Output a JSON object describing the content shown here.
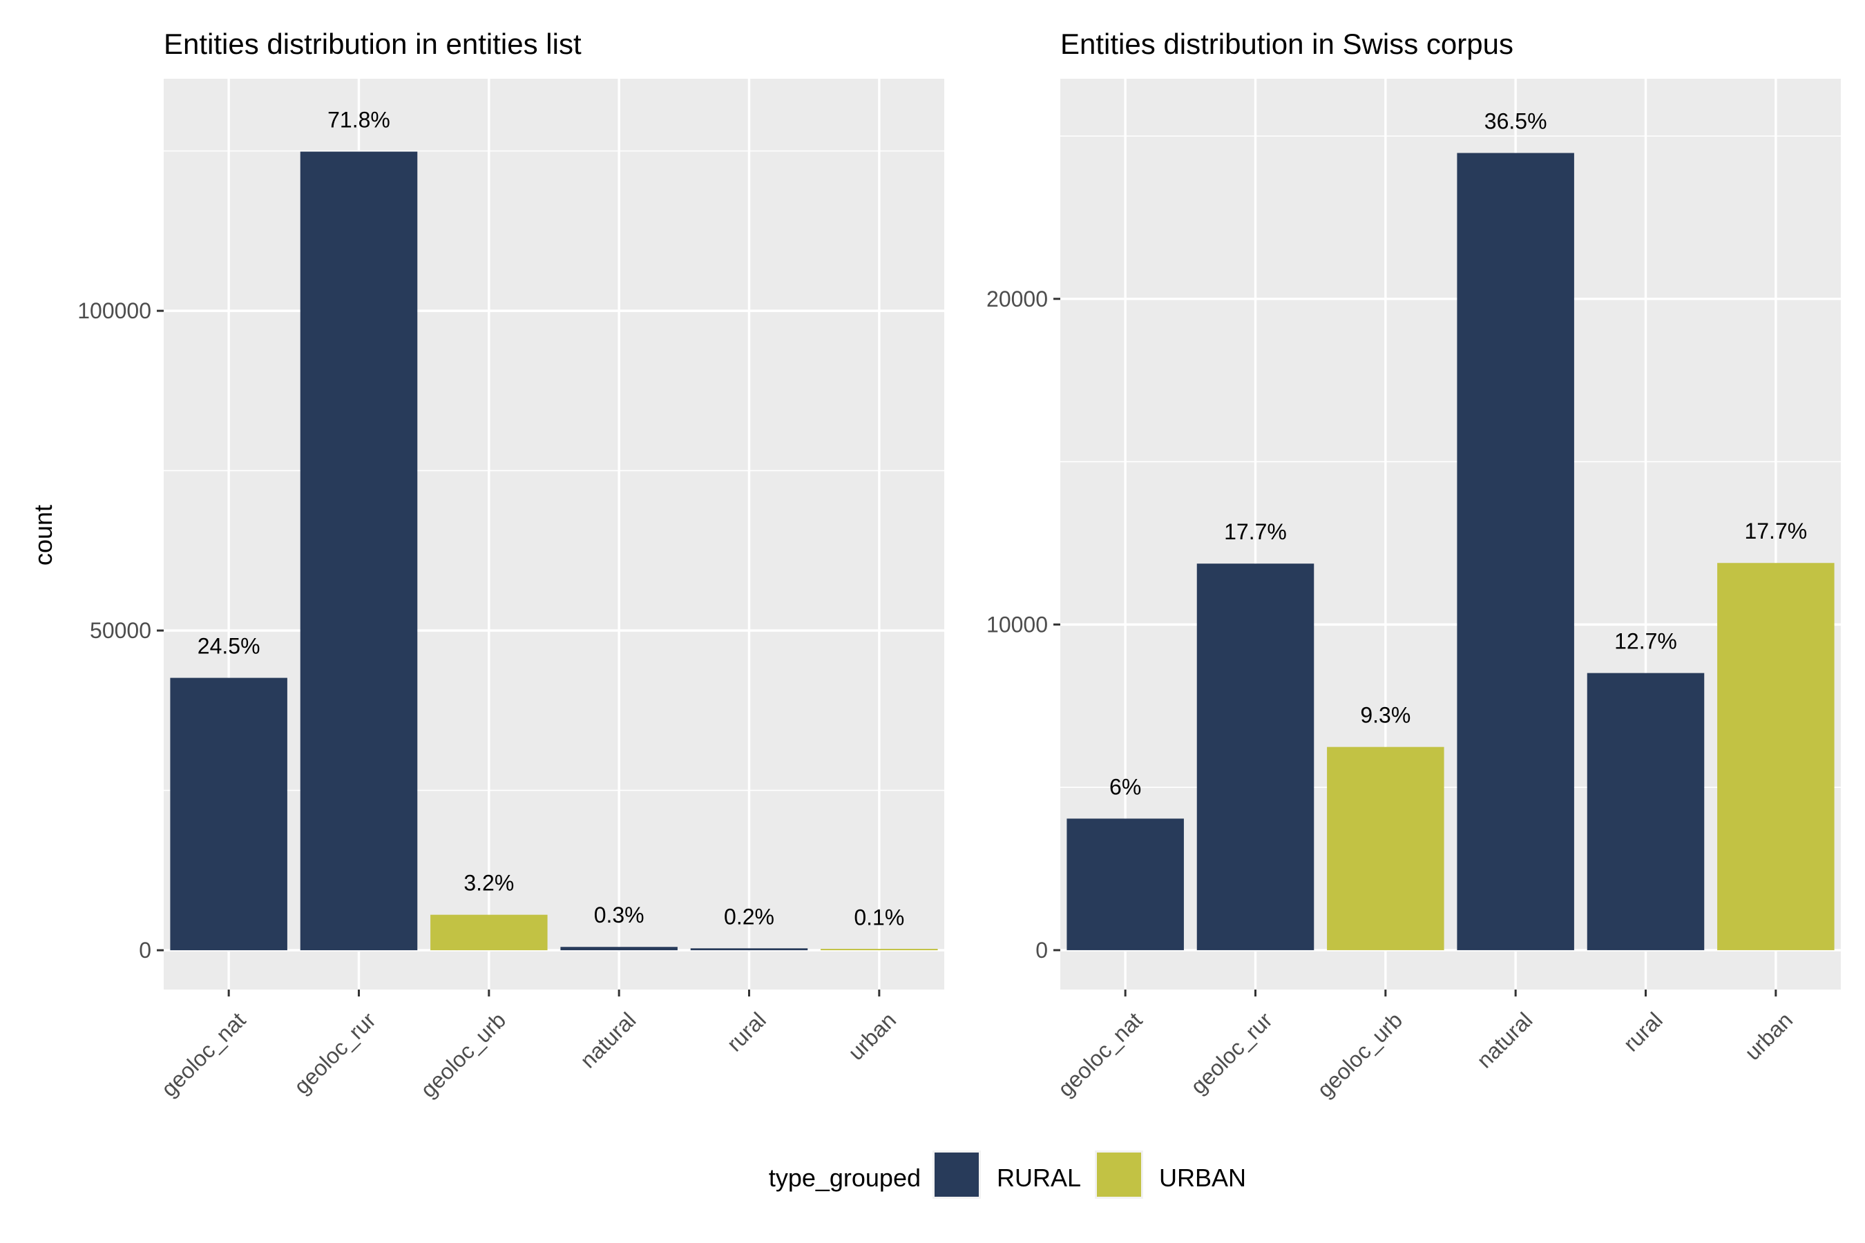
{
  "chart_data": [
    {
      "type": "bar",
      "title": "Entities distribution in entities list",
      "xlabel": "",
      "ylabel": "count",
      "categories": [
        "geoloc_nat",
        "geoloc_rur",
        "geoloc_urb",
        "natural",
        "rural",
        "urban"
      ],
      "values": [
        42600,
        124900,
        5550,
        520,
        300,
        150
      ],
      "groups": [
        "RURAL",
        "RURAL",
        "URBAN",
        "RURAL",
        "RURAL",
        "URBAN"
      ],
      "labels": [
        "24.5%",
        "71.8%",
        "3.2%",
        "0.3%",
        "0.2%",
        "0.1%"
      ],
      "yticks": [
        0,
        50000,
        100000
      ],
      "ytick_labels": [
        "0",
        "50000",
        "100000"
      ],
      "minor_yticks": [
        25000,
        75000,
        125000
      ],
      "ylim": [
        -6150,
        136300
      ],
      "grid": true
    },
    {
      "type": "bar",
      "title": "Entities distribution in Swiss corpus",
      "xlabel": "",
      "ylabel": "",
      "categories": [
        "geoloc_nat",
        "geoloc_rur",
        "geoloc_urb",
        "natural",
        "rural",
        "urban"
      ],
      "values": [
        4040,
        11870,
        6240,
        24480,
        8510,
        11890
      ],
      "groups": [
        "RURAL",
        "RURAL",
        "URBAN",
        "RURAL",
        "RURAL",
        "URBAN"
      ],
      "labels": [
        "6%",
        "17.7%",
        "9.3%",
        "36.5%",
        "12.7%",
        "17.7%"
      ],
      "yticks": [
        0,
        10000,
        20000
      ],
      "ytick_labels": [
        "0",
        "10000",
        "20000"
      ],
      "minor_yticks": [
        5000,
        15000,
        25000
      ],
      "ylim": [
        -1210,
        26760
      ],
      "grid": true
    }
  ],
  "legend": {
    "title": "type_grouped",
    "position": "bottom",
    "entries": [
      {
        "name": "RURAL",
        "color": "#283b5a"
      },
      {
        "name": "URBAN",
        "color": "#c2c244"
      }
    ]
  },
  "colors": {
    "panel_bg": "#ebebeb",
    "grid": "#ffffff",
    "RURAL": "#283b5a",
    "URBAN": "#c2c244"
  }
}
